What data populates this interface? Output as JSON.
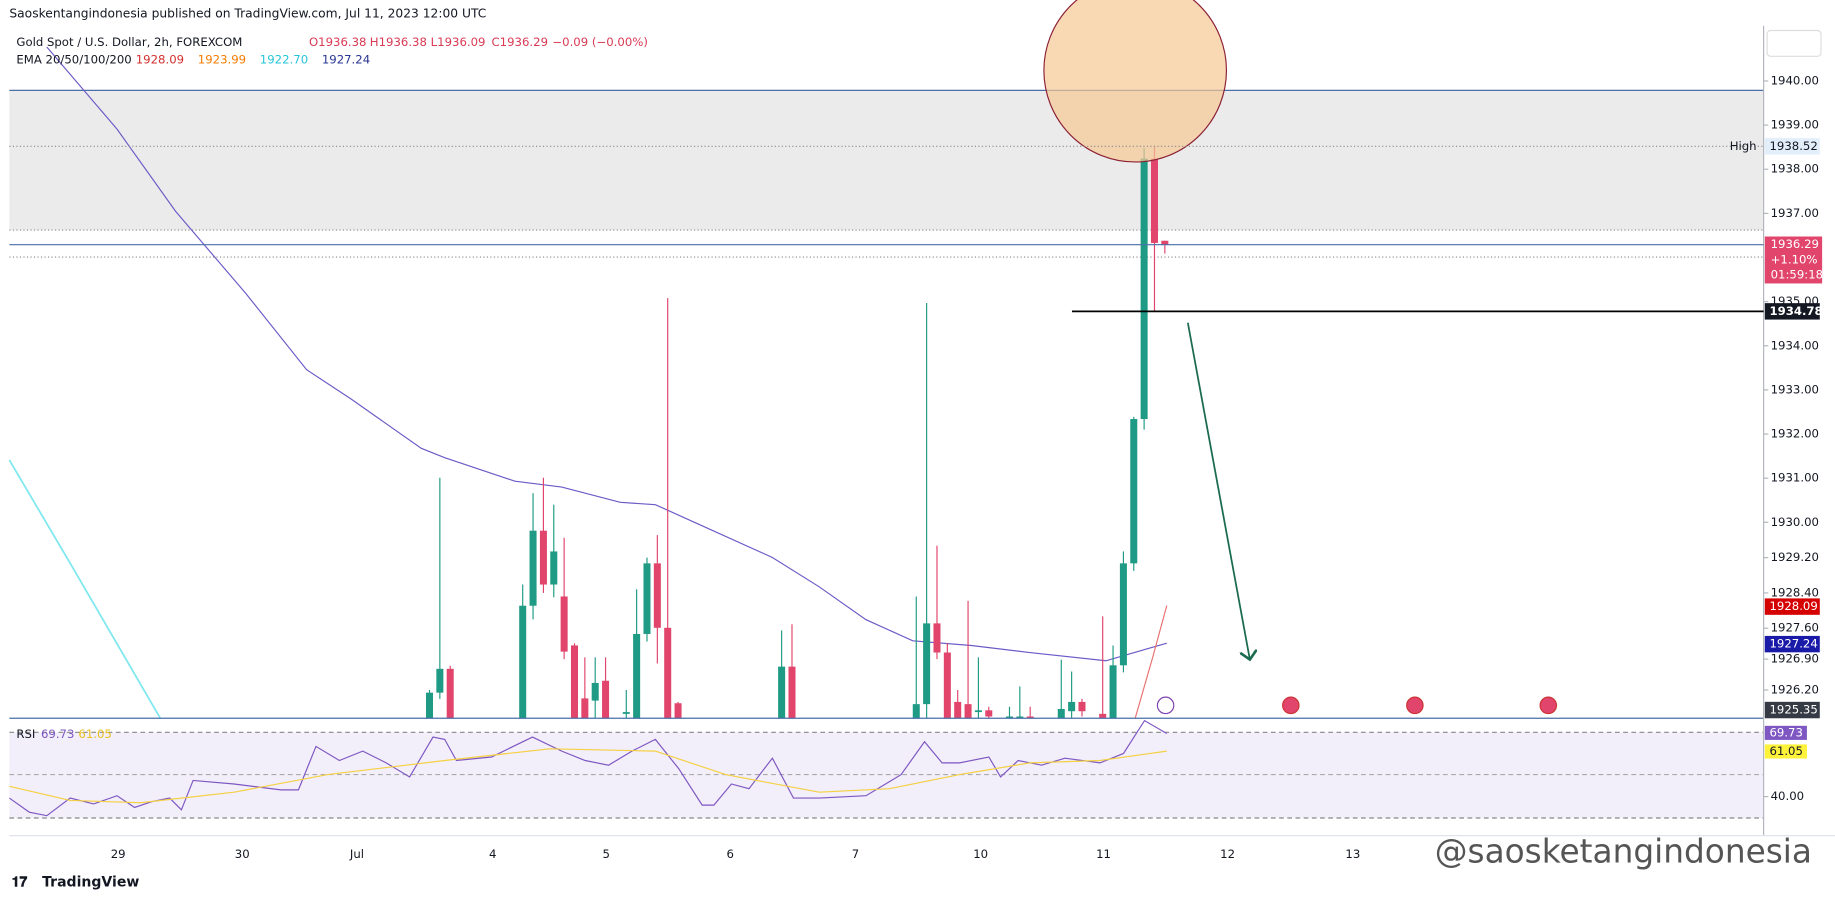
{
  "header": {
    "publisher": "Saoskentangindonesia published on TradingView.com, Jul 11, 2023 12:00 UTC",
    "symbol": "Gold Spot / U.S. Dollar, 2h, FOREXCOM",
    "ohlc": [
      "O1936.38",
      "H1936.38",
      "L1936.09",
      "C1936.29",
      "−0.09 (−0.00%)"
    ],
    "ema_label": "EMA 20/50/100/200",
    "ema_values": [
      "1928.09",
      "1923.99",
      "1922.70",
      "1927.24"
    ]
  },
  "chart_data": {
    "type": "candlestick",
    "up_color": "#1f9b85",
    "down_color": "#e2456c",
    "open": [
      1925.3,
      1926.14,
      1926.68,
      1925.3,
      1928.11,
      1929.81,
      1928.59,
      1928.32,
      1927.21,
      1926.01,
      1925.96,
      1926.41,
      1925.66,
      1925.3,
      1927.47,
      1929.07,
      1927.61,
      1925.9,
      1925.3,
      1926.73,
      1925.3,
      1925.88,
      1927.71,
      1927.05,
      1925.93,
      1925.88,
      1925.7,
      1925.74,
      1925.5,
      1925.5,
      1925.6,
      1925.56,
      1925.72,
      1925.93,
      1925.66,
      1925.3,
      1926.76,
      1929.07,
      1932.34,
      1938.24,
      1936.38
    ],
    "high": [
      1926.2,
      1931.01,
      1926.75,
      1928.59,
      1930.66,
      1931.01,
      1930.4,
      1929.65,
      1927.26,
      1926.94,
      1926.94,
      1926.94,
      1926.2,
      1928.48,
      1929.2,
      1929.71,
      1935.08,
      1925.93,
      1927.55,
      1927.69,
      1928.32,
      1934.97,
      1929.47,
      1927.26,
      1926.2,
      1928.22,
      1926.94,
      1925.82,
      1925.82,
      1926.28,
      1925.82,
      1926.89,
      1926.62,
      1926.0,
      1927.87,
      1927.21,
      1929.34,
      1932.39,
      1938.48,
      1938.52,
      1936.38
    ],
    "low": [
      1925.0,
      1926.0,
      1925.0,
      1925.0,
      1927.8,
      1928.4,
      1928.3,
      1926.9,
      1925.0,
      1925.0,
      1925.5,
      1925.0,
      1925.5,
      1925.0,
      1927.3,
      1926.8,
      1925.0,
      1925.0,
      1925.0,
      1925.0,
      1925.0,
      1925.5,
      1926.9,
      1925.0,
      1925.0,
      1925.0,
      1925.0,
      1925.0,
      1925.0,
      1925.0,
      1925.0,
      1925.2,
      1925.5,
      1925.6,
      1925.0,
      1925.0,
      1926.6,
      1928.9,
      1932.1,
      1934.79,
      1936.09
    ],
    "close": [
      1926.14,
      1926.68,
      1925.3,
      1928.11,
      1929.81,
      1928.59,
      1929.34,
      1927.07,
      1925.3,
      1925.3,
      1926.36,
      1925.3,
      1925.7,
      1927.47,
      1929.07,
      1927.61,
      1925.3,
      1925.3,
      1926.73,
      1925.3,
      1925.88,
      1927.71,
      1927.05,
      1925.3,
      1925.3,
      1925.3,
      1925.74,
      1925.6,
      1925.6,
      1925.6,
      1925.5,
      1925.77,
      1925.93,
      1925.72,
      1925.3,
      1926.76,
      1929.07,
      1932.34,
      1938.24,
      1936.33,
      1936.29
    ],
    "ylim": [
      1925.56,
      1941.25
    ],
    "yticks": [
      {
        "value": 1926.2,
        "label": "1926.20"
      },
      {
        "value": 1926.9,
        "label": "1926.90"
      },
      {
        "value": 1927.6,
        "label": "1927.60"
      },
      {
        "value": 1928.4,
        "label": "1928.40"
      },
      {
        "value": 1929.2,
        "label": "1929.20"
      },
      {
        "value": 1930,
        "label": "1930.00"
      },
      {
        "value": 1931,
        "label": "1931.00"
      },
      {
        "value": 1932,
        "label": "1932.00"
      },
      {
        "value": 1933,
        "label": "1933.00"
      },
      {
        "value": 1934,
        "label": "1934.00"
      },
      {
        "value": 1935,
        "label": "1935.00"
      },
      {
        "value": 1937,
        "label": "1937.00"
      },
      {
        "value": 1938,
        "label": "1938.00"
      },
      {
        "value": 1939,
        "label": "1939.00"
      },
      {
        "value": 1940,
        "label": "1940.00"
      }
    ],
    "x_labels": [
      "29",
      "30",
      "Jul",
      "4",
      "5",
      "6",
      "7",
      "10",
      "11",
      "12",
      "13"
    ],
    "high_marker": {
      "label": "High",
      "value": 1938.52
    },
    "current": {
      "value": 1936.29,
      "change": "+1.10%",
      "countdown": "01:59:18"
    },
    "level": 1934.78,
    "ema_marks": [
      1928.09,
      1927.24,
      1925.35
    ],
    "rsi": {
      "label": "RSI",
      "value": 69.73,
      "ma": 61.05,
      "ylim": [
        21.8,
        74.9
      ],
      "yticks": [
        {
          "value": 40,
          "label": "40.00"
        }
      ]
    }
  },
  "footer": {
    "brand": "TradingView",
    "watermark": "@saosketangindonesia"
  }
}
